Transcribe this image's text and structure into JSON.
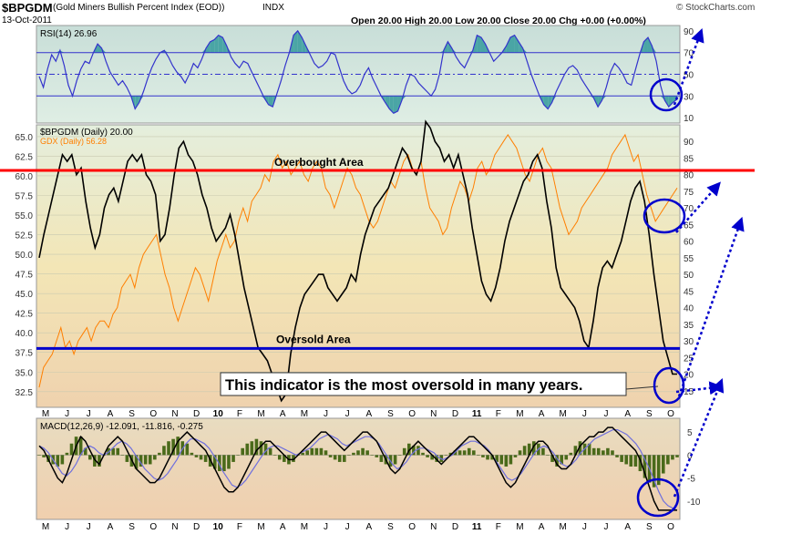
{
  "header": {
    "symbol": "$BPGDM",
    "name": "(Gold Miners Bullish Percent Index (EOD))",
    "exchange": "INDX",
    "date": "13-Oct-2011",
    "quote": "Open 20.00   High 20.00   Low 20.00   Close 20.00   Chg +0.00 (+0.00%)",
    "watermark": "© StockCharts.com"
  },
  "colors": {
    "bpgdm": "#000000",
    "gdx": "#ff7f00",
    "rsi": "#3333cc",
    "rsi_fill": "#4aa5a5",
    "overbought_line": "#ff0000",
    "oversold_line": "#0000cc",
    "macd": "#000000",
    "signal": "#7070dd",
    "histogram": "#4a6a1a",
    "annotation_blue": "#0000cc"
  },
  "chart_data": [
    {
      "type": "line",
      "panel": "RSI",
      "title": "RSI(14) 26.96",
      "right_ticks": [
        10,
        30,
        50,
        70,
        90
      ],
      "levels": [
        70,
        50,
        30
      ],
      "ylim": [
        5,
        95
      ],
      "series": [
        {
          "name": "RSI(14)",
          "values": [
            48,
            38,
            55,
            68,
            62,
            72,
            58,
            40,
            30,
            44,
            55,
            62,
            60,
            70,
            78,
            74,
            62,
            52,
            46,
            40,
            44,
            38,
            30,
            18,
            24,
            34,
            46,
            56,
            64,
            70,
            72,
            66,
            58,
            52,
            48,
            42,
            50,
            60,
            56,
            64,
            74,
            80,
            82,
            86,
            84,
            76,
            66,
            60,
            56,
            62,
            60,
            52,
            44,
            36,
            28,
            22,
            20,
            32,
            44,
            58,
            70,
            86,
            90,
            84,
            76,
            68,
            60,
            56,
            58,
            62,
            70,
            68,
            56,
            44,
            36,
            32,
            34,
            40,
            50,
            56,
            46,
            38,
            30,
            24,
            18,
            14,
            16,
            26,
            40,
            50,
            48,
            42,
            38,
            34,
            30,
            36,
            50,
            72,
            80,
            74,
            66,
            60,
            56,
            64,
            72,
            86,
            84,
            78,
            70,
            62,
            66,
            70,
            76,
            84,
            86,
            80,
            74,
            62,
            50,
            40,
            30,
            22,
            18,
            24,
            34,
            42,
            50,
            56,
            58,
            54,
            46,
            40,
            34,
            28,
            20,
            26,
            38,
            52,
            60,
            56,
            50,
            42,
            40,
            54,
            68,
            80,
            84,
            76,
            62,
            40,
            26,
            20,
            24,
            27
          ]
        }
      ]
    },
    {
      "type": "line",
      "panel": "Price",
      "legend": [
        "$BPGDM (Daily) 20.00",
        "GDX (Daily) 56.28"
      ],
      "left_ticks": [
        32.5,
        35.0,
        37.5,
        40.0,
        42.5,
        45.0,
        47.5,
        50.0,
        52.5,
        55.0,
        57.5,
        60.0,
        62.5,
        65.0
      ],
      "left_ylim": [
        30.5,
        66.5
      ],
      "right_ticks": [
        15,
        20,
        25,
        30,
        35,
        40,
        45,
        50,
        55,
        60,
        65,
        70,
        75,
        80,
        85,
        90
      ],
      "right_ylim": [
        10,
        95
      ],
      "x_labels": [
        "M",
        "J",
        "J",
        "A",
        "S",
        "O",
        "N",
        "D",
        "10",
        "F",
        "M",
        "A",
        "M",
        "J",
        "J",
        "A",
        "S",
        "O",
        "N",
        "D",
        "11",
        "F",
        "M",
        "A",
        "M",
        "J",
        "J",
        "A",
        "S",
        "O"
      ],
      "series": [
        {
          "name": "$BPGDM",
          "axis": "right",
          "values": [
            55,
            62,
            68,
            74,
            80,
            86,
            84,
            86,
            80,
            82,
            72,
            64,
            58,
            62,
            70,
            74,
            76,
            72,
            78,
            84,
            86,
            84,
            86,
            80,
            78,
            74,
            60,
            62,
            70,
            80,
            88,
            90,
            86,
            84,
            80,
            74,
            70,
            64,
            60,
            62,
            64,
            68,
            62,
            54,
            46,
            40,
            34,
            28,
            26,
            24,
            20,
            16,
            12,
            14,
            26,
            34,
            40,
            44,
            46,
            48,
            50,
            50,
            46,
            44,
            42,
            44,
            46,
            50,
            48,
            56,
            62,
            66,
            70,
            72,
            74,
            76,
            80,
            84,
            88,
            86,
            82,
            80,
            84,
            96,
            94,
            90,
            88,
            84,
            86,
            82,
            86,
            80,
            74,
            64,
            56,
            48,
            44,
            42,
            46,
            52,
            60,
            66,
            70,
            74,
            78,
            80,
            84,
            86,
            82,
            72,
            64,
            52,
            46,
            44,
            42,
            40,
            36,
            30,
            28,
            36,
            46,
            52,
            54,
            52,
            56,
            60,
            66,
            72,
            76,
            78,
            72,
            62,
            50,
            40,
            30,
            25,
            20,
            20
          ]
        },
        {
          "name": "GDX",
          "axis": "right",
          "values": [
            16,
            22,
            24,
            26,
            30,
            34,
            28,
            30,
            26,
            30,
            32,
            34,
            30,
            34,
            36,
            36,
            34,
            38,
            40,
            46,
            48,
            50,
            46,
            52,
            56,
            58,
            60,
            62,
            56,
            50,
            46,
            40,
            36,
            40,
            44,
            48,
            52,
            50,
            46,
            42,
            48,
            54,
            58,
            62,
            58,
            60,
            66,
            70,
            66,
            72,
            74,
            76,
            80,
            78,
            84,
            86,
            82,
            84,
            80,
            82,
            84,
            80,
            78,
            82,
            84,
            82,
            76,
            74,
            70,
            74,
            78,
            82,
            80,
            76,
            74,
            70,
            66,
            64,
            66,
            70,
            74,
            78,
            76,
            80,
            84,
            86,
            82,
            80,
            84,
            76,
            70,
            68,
            66,
            62,
            64,
            70,
            74,
            78,
            76,
            72,
            76,
            82,
            84,
            80,
            82,
            86,
            88,
            90,
            92,
            90,
            88,
            84,
            80,
            78,
            82,
            86,
            88,
            84,
            82,
            76,
            70,
            66,
            62,
            64,
            66,
            70,
            72,
            74,
            76,
            78,
            80,
            82,
            86,
            88,
            90,
            92,
            88,
            84,
            86,
            80,
            74,
            70,
            66,
            68,
            70,
            72,
            74,
            76
          ]
        }
      ],
      "annotations": {
        "overbought_label": "Overbought Area",
        "oversold_label": "Oversold Area",
        "overbought_level": 60.7,
        "oversold_level": 38.0,
        "callout": "This indicator is the most oversold in many years."
      }
    },
    {
      "type": "line",
      "panel": "MACD",
      "title": "MACD(12,26,9) -12.091, -11.816, -0.275",
      "right_ticks": [
        -10,
        -5,
        0,
        5
      ],
      "ylim": [
        -14,
        8
      ],
      "x_labels": [
        "M",
        "J",
        "J",
        "A",
        "S",
        "O",
        "N",
        "D",
        "10",
        "F",
        "M",
        "A",
        "M",
        "J",
        "J",
        "A",
        "S",
        "O",
        "N",
        "D",
        "11",
        "F",
        "M",
        "A",
        "M",
        "J",
        "J",
        "A",
        "S",
        "O"
      ],
      "series": [
        {
          "name": "MACD",
          "values": [
            2,
            1,
            -1,
            -3,
            -5,
            -6,
            -4,
            -1,
            2,
            4,
            3,
            1,
            -1,
            -2,
            0,
            2,
            3,
            4,
            3,
            1,
            -1,
            -3,
            -4,
            -5,
            -6,
            -6,
            -5,
            -3,
            -1,
            1,
            3,
            4,
            5,
            4,
            3,
            2,
            1,
            -1,
            -3,
            -5,
            -7,
            -8,
            -8,
            -7,
            -5,
            -3,
            -1,
            1,
            2,
            3,
            3,
            2,
            1,
            0,
            -1,
            -1,
            0,
            1,
            2,
            3,
            4,
            5,
            5,
            4,
            3,
            2,
            1,
            2,
            3,
            4,
            5,
            5,
            4,
            3,
            1,
            -1,
            -3,
            -4,
            -3,
            -1,
            1,
            2,
            3,
            2,
            1,
            0,
            -1,
            -2,
            -1,
            0,
            1,
            2,
            3,
            4,
            4,
            3,
            2,
            1,
            0,
            -2,
            -4,
            -6,
            -7,
            -6,
            -4,
            -2,
            0,
            2,
            3,
            3,
            2,
            0,
            -2,
            -3,
            -3,
            -2,
            0,
            2,
            3,
            4,
            4,
            5,
            5,
            6,
            6,
            5,
            4,
            3,
            2,
            1,
            -1,
            -4,
            -7,
            -10,
            -12,
            -12,
            -12,
            -12,
            -12
          ]
        },
        {
          "name": "Signal",
          "values": [
            2,
            1.5,
            0.5,
            -1,
            -2.5,
            -4,
            -4.5,
            -3.5,
            -2,
            0,
            1.5,
            2,
            1.5,
            0.5,
            0,
            0.5,
            1.5,
            2.5,
            3,
            2.5,
            1.5,
            0,
            -1.5,
            -3,
            -4,
            -5,
            -5.5,
            -5,
            -4,
            -2.5,
            -1,
            1,
            2.5,
            3.5,
            3.5,
            3,
            2.5,
            1.5,
            0,
            -1.5,
            -3.5,
            -5,
            -6.5,
            -7,
            -6.5,
            -5.5,
            -4,
            -2.5,
            -1,
            0.5,
            1.5,
            2,
            2,
            1.5,
            1,
            0.5,
            0,
            0.5,
            1,
            1.5,
            2.5,
            3.5,
            4,
            4.5,
            4,
            3.5,
            2.5,
            2,
            2.5,
            3,
            3.5,
            4,
            4,
            3.5,
            2.5,
            1,
            -0.5,
            -2,
            -3,
            -2.5,
            -1.5,
            0,
            1,
            1.5,
            1.5,
            1,
            0.5,
            -0.5,
            -1,
            -0.5,
            0,
            1,
            2,
            2.5,
            3,
            3,
            2.5,
            2,
            1,
            -0.5,
            -2,
            -3.5,
            -5,
            -5.5,
            -5,
            -4,
            -2.5,
            -1,
            0.5,
            1.5,
            2,
            1.5,
            0.5,
            -1,
            -2,
            -2.5,
            -2,
            -1,
            0.5,
            1.5,
            2.5,
            3.5,
            4,
            4.5,
            5,
            5.5,
            5.5,
            5,
            4.5,
            3.5,
            2.5,
            1,
            -1,
            -3,
            -5.5,
            -8,
            -10,
            -11,
            -11.5,
            -12
          ]
        }
      ]
    }
  ]
}
